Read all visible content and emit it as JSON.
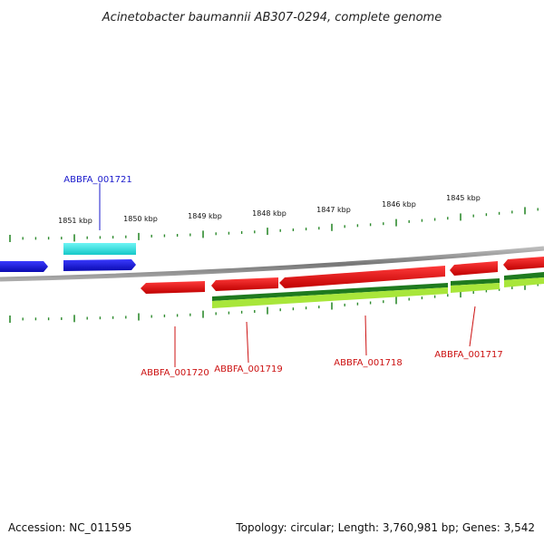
{
  "title": "Acinetobacter baumannii AB307-0294, complete genome",
  "footer": {
    "accession": "Accession: NC_011595",
    "summary": "Topology: circular; Length: 3,760,981 bp; Genes: 3,542"
  },
  "scale_labels": [
    "1851 kbp",
    "1850 kbp",
    "1849 kbp",
    "1848 kbp",
    "1847 kbp",
    "1846 kbp",
    "1845 kbp"
  ],
  "genes": [
    {
      "id": "ABBFA_001721",
      "strand": "forward",
      "color": "#1a1acc"
    },
    {
      "id": "ABBFA_001720",
      "strand": "reverse",
      "color": "#cc1111"
    },
    {
      "id": "ABBFA_001719",
      "strand": "reverse",
      "color": "#cc1111"
    },
    {
      "id": "ABBFA_001718",
      "strand": "reverse",
      "color": "#cc1111"
    },
    {
      "id": "ABBFA_001717",
      "strand": "reverse",
      "color": "#cc1111"
    }
  ],
  "colors": {
    "forward_cds": "#1515e0",
    "forward_feature": "#22e0e0",
    "reverse_cds": "#e01010",
    "reverse_feature_dark": "#1f7a1f",
    "reverse_feature_light": "#a8e63a",
    "backbone": "#888888",
    "ticks": "#2e8b2e"
  }
}
